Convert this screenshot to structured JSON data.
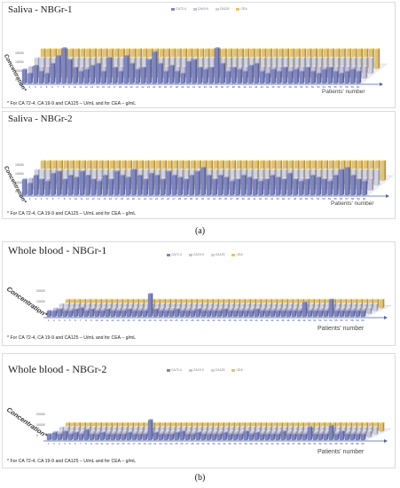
{
  "chart_data": [
    {
      "type": "bar",
      "title": "Saliva - NBGr-1",
      "legend": [
        "CA72-4",
        "CA19-9",
        "CA125",
        "CEA"
      ],
      "ylabel": "Concentration*",
      "xlabel": "Patients' number",
      "y_ticks": [
        "0",
        "5000",
        "10000",
        "15000"
      ],
      "categories_count": 60,
      "footnote": "* For CA 72-4, CA 19-9 and CA125 – U/mL and for CEA – g/mL",
      "series": [
        {
          "name": "CA72-4",
          "values": [
            3.5,
            2.5,
            4.5,
            3,
            2.5,
            5,
            7,
            9,
            6,
            4,
            3,
            3.5,
            4.5,
            5,
            3,
            6.5,
            4,
            3,
            7,
            5,
            3.5,
            4,
            6,
            8,
            5,
            3,
            4.5,
            3,
            2.5,
            5.5,
            6,
            4,
            3.5,
            4,
            9,
            5,
            3,
            4,
            3.5,
            3,
            4.5,
            5,
            3,
            2.5,
            3.5,
            3,
            4,
            3,
            3.5,
            3,
            4,
            3,
            2.5,
            3.5,
            4,
            3,
            2.5,
            3,
            3.5,
            3
          ]
        },
        {
          "name": "CA19-9",
          "values": [
            3,
            3,
            3,
            3,
            3,
            3,
            3,
            3,
            3,
            3,
            3,
            3,
            3,
            3,
            3,
            3,
            3,
            3,
            3,
            3,
            3,
            3,
            3,
            3,
            3,
            3,
            3,
            3,
            3,
            3,
            3,
            3,
            3,
            3,
            3,
            3,
            3,
            3,
            3,
            3,
            3,
            3,
            3,
            3,
            3,
            3,
            3,
            3,
            3,
            3,
            3,
            3,
            3,
            3,
            3,
            3,
            3,
            3,
            3,
            3
          ]
        },
        {
          "name": "CA125",
          "values": [
            4,
            4,
            4,
            4,
            4,
            4,
            4,
            4,
            4,
            4,
            4,
            4,
            4,
            4,
            4,
            4,
            4,
            4,
            4,
            4,
            4,
            4,
            4,
            4,
            4,
            4,
            4,
            4,
            4,
            4,
            4,
            4,
            4,
            4,
            4,
            4,
            4,
            4,
            4,
            4,
            4,
            4,
            4,
            4,
            4,
            4,
            4,
            4,
            4,
            4,
            4,
            4,
            4,
            4,
            4,
            4,
            4,
            4,
            4,
            4
          ]
        },
        {
          "name": "CEA",
          "values": [
            5,
            5,
            5,
            5,
            5,
            5,
            5,
            5,
            5,
            5,
            5,
            5,
            5,
            5,
            5,
            5,
            5,
            5,
            5,
            5,
            5,
            5,
            5,
            5,
            5,
            5,
            5,
            5,
            5,
            5,
            5,
            5,
            5,
            5,
            5,
            5,
            5,
            5,
            5,
            5,
            5,
            5,
            5,
            5,
            5,
            5,
            5,
            5,
            5,
            5,
            5,
            5,
            5,
            5,
            5,
            5,
            5,
            5,
            5,
            5
          ]
        }
      ]
    },
    {
      "type": "bar",
      "title": "Saliva - NBGr-2",
      "legend": [
        "CA72-4",
        "CA19-9",
        "CA125",
        "CEA"
      ],
      "ylabel": "Concentration*",
      "xlabel": "Patients' number",
      "y_ticks": [
        "0",
        "5000",
        "10000",
        "15000"
      ],
      "categories_count": 60,
      "footnote": "* For CA 72-4, CA 19-9 and CA125 – U/mL and for CEA – g/mL",
      "series": [
        {
          "name": "CA72-4",
          "values": [
            4,
            3,
            5,
            4,
            3.5,
            5.5,
            6,
            4,
            5,
            4.5,
            6,
            5,
            4,
            3.5,
            5,
            4,
            6,
            5,
            4.5,
            6.5,
            5,
            4,
            5.5,
            5,
            4,
            6,
            5,
            4.5,
            4,
            5,
            6,
            7,
            5,
            4,
            5,
            4.5,
            3.5,
            4,
            5,
            4.5,
            4,
            3.5,
            4,
            5,
            4.5,
            4,
            5.5,
            4,
            3.5,
            4,
            5,
            4.5,
            4,
            3.5,
            5,
            6.5,
            7,
            5,
            4,
            3.5
          ]
        },
        {
          "name": "CA19-9",
          "values": [
            3,
            3,
            3,
            3,
            3,
            3,
            3,
            3,
            3,
            3,
            3,
            3,
            3,
            3,
            3,
            3,
            3,
            3,
            3,
            3,
            3,
            3,
            3,
            3,
            3,
            3,
            3,
            3,
            3,
            3,
            3,
            3,
            3,
            3,
            3,
            3,
            3,
            3,
            3,
            3,
            3,
            3,
            3,
            3,
            3,
            3,
            3,
            3,
            3,
            3,
            3,
            3,
            3,
            3,
            3,
            3,
            3,
            3,
            3,
            3
          ]
        },
        {
          "name": "CA125",
          "values": [
            4,
            4,
            4,
            4,
            4,
            4,
            4,
            4,
            4,
            4,
            4,
            4,
            4,
            4,
            4,
            4,
            4,
            4,
            4,
            4,
            4,
            4,
            4,
            4,
            4,
            4,
            4,
            4,
            4,
            4,
            4,
            4,
            4,
            4,
            4,
            4,
            4,
            4,
            4,
            4,
            4,
            4,
            4,
            4,
            4,
            4,
            4,
            4,
            4,
            4,
            4,
            4,
            4,
            4,
            4,
            4,
            4,
            4,
            4,
            4
          ]
        },
        {
          "name": "CEA",
          "values": [
            5,
            5,
            5,
            5,
            5,
            5,
            5,
            5,
            5,
            5,
            5,
            5,
            5,
            5,
            5,
            5,
            5,
            5,
            5,
            5,
            5,
            5,
            5,
            5,
            5,
            5,
            5,
            5,
            5,
            5,
            5,
            5,
            5,
            5,
            5,
            5,
            5,
            5,
            5,
            5,
            5,
            5,
            5,
            5,
            5,
            5,
            5,
            5,
            5,
            5,
            5,
            5,
            5,
            5,
            5,
            5,
            5,
            5,
            5,
            5
          ]
        }
      ]
    },
    {
      "type": "bar",
      "title": "Whole blood - NBGr-1",
      "legend": [
        "CA72-4",
        "CA19-9",
        "CA125",
        "CEA"
      ],
      "ylabel": "Concentration*",
      "xlabel": "Patients' number",
      "y_ticks": [
        "0",
        "10000",
        "20000"
      ],
      "categories_count": 60,
      "footnote": "* For CA 72-4, CA 19-9 and CA125 – U/mL and for CEA – g/mL",
      "series": [
        {
          "name": "CA72-4",
          "values": [
            2,
            2,
            2.5,
            2,
            2,
            2.5,
            3,
            2,
            2.5,
            2,
            2,
            2.5,
            2,
            2,
            2,
            2.5,
            2,
            2,
            2,
            8,
            2.5,
            2,
            2,
            2,
            2.5,
            2,
            2,
            2,
            2.5,
            2,
            2,
            2,
            2,
            2.5,
            2,
            2,
            2,
            2,
            2,
            2.5,
            2,
            2,
            2,
            2,
            2,
            2,
            2,
            2,
            5,
            2,
            2,
            2,
            2,
            6,
            2,
            2,
            2,
            2,
            2,
            2
          ]
        },
        {
          "name": "CA19-9",
          "values": [
            2,
            2,
            2,
            2,
            2,
            2,
            2,
            2,
            2,
            2,
            2,
            2,
            2,
            2,
            2,
            2,
            2,
            2,
            2,
            2,
            2,
            2,
            2,
            2,
            2,
            2,
            2,
            2,
            2,
            2,
            2,
            2,
            2,
            2,
            2,
            2,
            2,
            2,
            2,
            2,
            2,
            2,
            2,
            2,
            2,
            2,
            2,
            2,
            2,
            2,
            2,
            2,
            2,
            2,
            2,
            2,
            2,
            2,
            2,
            2
          ]
        },
        {
          "name": "CA125",
          "values": [
            2.5,
            2.5,
            2.5,
            2.5,
            2.5,
            2.5,
            2.5,
            2.5,
            2.5,
            2.5,
            2.5,
            2.5,
            2.5,
            2.5,
            2.5,
            2.5,
            2.5,
            2.5,
            2.5,
            2.5,
            2.5,
            2.5,
            2.5,
            2.5,
            2.5,
            2.5,
            2.5,
            2.5,
            2.5,
            2.5,
            2.5,
            2.5,
            2.5,
            2.5,
            2.5,
            2.5,
            2.5,
            2.5,
            2.5,
            2.5,
            2.5,
            2.5,
            2.5,
            2.5,
            2.5,
            2.5,
            2.5,
            2.5,
            2.5,
            2.5,
            2.5,
            2.5,
            2.5,
            2.5,
            2.5,
            2.5,
            2.5,
            2.5,
            2.5,
            2.5
          ]
        },
        {
          "name": "CEA",
          "values": [
            3,
            3,
            3,
            3,
            3,
            3,
            3,
            3,
            3,
            3,
            3,
            3,
            3,
            3,
            3,
            3,
            3,
            3,
            3,
            3,
            3,
            3,
            3,
            3,
            3,
            3,
            3,
            3,
            3,
            3,
            3,
            3,
            3,
            3,
            3,
            3,
            3,
            3,
            3,
            3,
            3,
            3,
            3,
            3,
            3,
            3,
            3,
            3,
            3,
            3,
            3,
            3,
            3,
            3,
            3,
            3,
            3,
            3,
            3,
            3
          ]
        }
      ]
    },
    {
      "type": "bar",
      "title": "Whole blood - NBGr-2",
      "legend": [
        "CA72-4",
        "CA19-9",
        "CA125",
        "CEA"
      ],
      "ylabel": "Concentration*",
      "xlabel": "Patients' number",
      "y_ticks": [
        "0",
        "10000",
        "20000"
      ],
      "categories_count": 60,
      "footnote": "* For CA 72-4, CA 19-9 and CA125 – U/mL and for CEA – g/mL",
      "series": [
        {
          "name": "CA72-4",
          "values": [
            2,
            2.5,
            2,
            3,
            2,
            2.5,
            2,
            3.5,
            2,
            2,
            2.5,
            2,
            2,
            2,
            2,
            2.5,
            2,
            2,
            2,
            7,
            2.5,
            2,
            2,
            2,
            2.5,
            3,
            2,
            2,
            2.5,
            2,
            2,
            2,
            2,
            2.5,
            2,
            2,
            2,
            3,
            2,
            2.5,
            2,
            2,
            2,
            2,
            3,
            2,
            2,
            2,
            2,
            4.5,
            2,
            2,
            2,
            5,
            2,
            3,
            2,
            2,
            2,
            2
          ]
        },
        {
          "name": "CA19-9",
          "values": [
            2,
            2,
            2,
            2,
            2,
            2,
            2,
            2,
            2,
            2,
            2,
            2,
            2,
            2,
            2,
            2,
            2,
            2,
            2,
            2,
            2,
            2,
            2,
            2,
            2,
            2,
            2,
            2,
            2,
            2,
            2,
            2,
            2,
            2,
            2,
            2,
            2,
            2,
            2,
            2,
            2,
            2,
            2,
            2,
            2,
            2,
            2,
            2,
            2,
            2,
            2,
            2,
            2,
            2,
            2,
            2,
            2,
            2,
            2,
            2
          ]
        },
        {
          "name": "CA125",
          "values": [
            2.5,
            2.5,
            2.5,
            2.5,
            2.5,
            2.5,
            2.5,
            2.5,
            2.5,
            2.5,
            2.5,
            2.5,
            2.5,
            2.5,
            2.5,
            2.5,
            2.5,
            2.5,
            2.5,
            2.5,
            2.5,
            2.5,
            2.5,
            2.5,
            2.5,
            2.5,
            2.5,
            2.5,
            2.5,
            2.5,
            2.5,
            2.5,
            2.5,
            2.5,
            2.5,
            2.5,
            2.5,
            2.5,
            2.5,
            2.5,
            2.5,
            2.5,
            2.5,
            2.5,
            2.5,
            2.5,
            2.5,
            2.5,
            2.5,
            2.5,
            2.5,
            2.5,
            2.5,
            2.5,
            2.5,
            2.5,
            2.5,
            2.5,
            2.5,
            2.5
          ]
        },
        {
          "name": "CEA",
          "values": [
            3,
            3,
            3,
            3,
            3,
            3,
            3,
            3,
            3,
            3,
            3,
            3,
            3,
            3,
            3,
            3,
            3,
            3,
            3,
            3,
            3,
            3,
            3,
            3,
            3,
            3,
            3,
            3,
            3,
            3,
            3,
            3,
            3,
            3,
            3,
            3,
            3,
            3,
            3,
            3,
            3,
            3,
            3,
            3,
            3,
            3,
            3,
            3,
            3,
            3,
            3,
            3,
            3,
            3,
            3,
            3,
            3,
            3,
            3,
            3
          ]
        }
      ]
    }
  ],
  "series_colors": [
    "#7f86c4",
    "#c7c3dd",
    "#cfd3e3",
    "#e6c36a"
  ],
  "captions": {
    "a": "(a)",
    "b": "(b)"
  }
}
